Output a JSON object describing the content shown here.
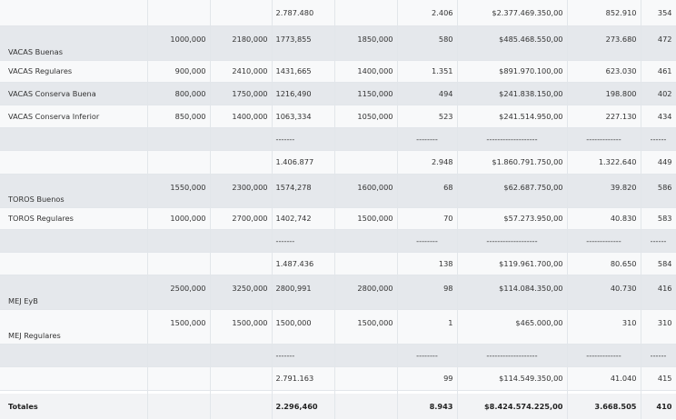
{
  "rows": [
    {
      "kind": "odd",
      "h": 28,
      "cells": [
        "",
        "",
        "",
        "2.787.480",
        "",
        "2.406",
        "$2.377.469.350,00",
        "852.910",
        "354"
      ]
    },
    {
      "kind": "even",
      "h": 38,
      "label_pos": "bottom",
      "cells": [
        "VACAS Buenas",
        "1000,000",
        "2180,000",
        "1773,855",
        "1850,000",
        "580",
        "$485.468.550,00",
        "273.680",
        "472"
      ]
    },
    {
      "kind": "odd",
      "h": 24,
      "cells": [
        "VACAS Regulares",
        "900,000",
        "2410,000",
        "1431,665",
        "1400,000",
        "1.351",
        "$891.970.100,00",
        "623.030",
        "461"
      ]
    },
    {
      "kind": "even",
      "h": 25,
      "cells": [
        "VACAS Conserva Buena",
        "800,000",
        "1750,000",
        "1216,490",
        "1150,000",
        "494",
        "$241.838.150,00",
        "198.800",
        "402"
      ]
    },
    {
      "kind": "odd",
      "h": 25,
      "cells": [
        "VACAS Conserva Inferior",
        "850,000",
        "1400,000",
        "1063,334",
        "1050,000",
        "523",
        "$241.514.950,00",
        "227.130",
        "434"
      ]
    },
    {
      "kind": "even",
      "h": 25,
      "cells": [
        "",
        "",
        "",
        "-------",
        "",
        "--------",
        "-------------------",
        "-------------",
        "------"
      ]
    },
    {
      "kind": "odd",
      "h": 26,
      "cells": [
        "",
        "",
        "",
        "1.406.877",
        "",
        "2.948",
        "$1.860.791.750,00",
        "1.322.640",
        "449"
      ]
    },
    {
      "kind": "even",
      "h": 37,
      "label_pos": "bottom",
      "cells": [
        "TOROS Buenos",
        "1550,000",
        "2300,000",
        "1574,278",
        "1600,000",
        "68",
        "$62.687.750,00",
        "39.820",
        "586"
      ]
    },
    {
      "kind": "odd",
      "h": 24,
      "cells": [
        "TOROS Regulares",
        "1000,000",
        "2700,000",
        "1402,742",
        "1500,000",
        "70",
        "$57.273.950,00",
        "40.830",
        "583"
      ]
    },
    {
      "kind": "even",
      "h": 25,
      "cells": [
        "",
        "",
        "",
        "-------",
        "",
        "--------",
        "-------------------",
        "-------------",
        "------"
      ]
    },
    {
      "kind": "odd",
      "h": 25,
      "cells": [
        "",
        "",
        "",
        "1.487.436",
        "",
        "138",
        "$119.961.700,00",
        "80.650",
        "584"
      ]
    },
    {
      "kind": "even",
      "h": 38,
      "label_pos": "bottom",
      "cells": [
        "MEJ EyB",
        "2500,000",
        "3250,000",
        "2800,991",
        "2800,000",
        "98",
        "$114.084.350,00",
        "40.730",
        "416"
      ]
    },
    {
      "kind": "odd",
      "h": 38,
      "label_pos": "bottom",
      "cells": [
        "MEJ Regulares",
        "1500,000",
        "1500,000",
        "1500,000",
        "1500,000",
        "1",
        "$465.000,00",
        "310",
        "310"
      ]
    },
    {
      "kind": "even",
      "h": 25,
      "cells": [
        "",
        "",
        "",
        "-------",
        "",
        "--------",
        "-------------------",
        "-------------",
        "------"
      ]
    },
    {
      "kind": "odd",
      "h": 26,
      "cells": [
        "",
        "",
        "",
        "2.791.163",
        "",
        "99",
        "$114.549.350,00",
        "41.040",
        "415"
      ]
    }
  ],
  "totals": {
    "h": 28,
    "cells": [
      "Totales",
      "",
      "",
      "2.296,460",
      "",
      "8.943",
      "$8.424.574.225,00",
      "3.668.505",
      "410"
    ]
  }
}
